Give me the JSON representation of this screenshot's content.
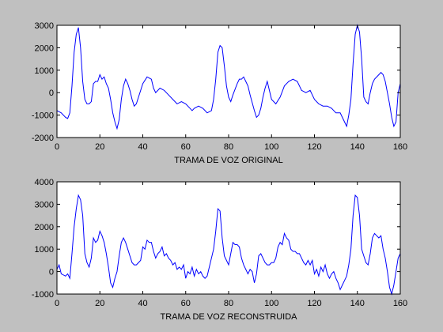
{
  "chart_data": [
    {
      "type": "line",
      "xlabel": "TRAMA DE VOZ ORIGINAL",
      "color": "#0000ff",
      "xlim": [
        0,
        160
      ],
      "xticks": [
        0,
        20,
        40,
        60,
        80,
        100,
        120,
        140,
        160
      ],
      "ylim": [
        -2000,
        3000
      ],
      "yticks": [
        -2000,
        -1000,
        0,
        1000,
        2000,
        3000
      ],
      "x": [
        0,
        2,
        4,
        5,
        6,
        7,
        8,
        9,
        10,
        11,
        12,
        13,
        14,
        15,
        16,
        17,
        18,
        19,
        20,
        21,
        22,
        23,
        24,
        25,
        26,
        27,
        28,
        29,
        30,
        31,
        32,
        33,
        34,
        35,
        36,
        37,
        38,
        39,
        40,
        42,
        44,
        45,
        46,
        47,
        48,
        50,
        52,
        54,
        56,
        58,
        60,
        62,
        63,
        64,
        66,
        68,
        70,
        72,
        73,
        74,
        75,
        76,
        77,
        78,
        79,
        80,
        81,
        82,
        84,
        85,
        86,
        87,
        88,
        89,
        90,
        92,
        93,
        94,
        95,
        96,
        97,
        98,
        99,
        100,
        102,
        104,
        106,
        108,
        110,
        112,
        113,
        114,
        116,
        118,
        119,
        120,
        122,
        124,
        126,
        128,
        129,
        130,
        132,
        134,
        135,
        136,
        137,
        138,
        139,
        140,
        141,
        142,
        143,
        144,
        145,
        146,
        147,
        148,
        150,
        151,
        152,
        153,
        154,
        155,
        156,
        157,
        158,
        159,
        160
      ],
      "values": [
        -800,
        -900,
        -1100,
        -1150,
        -900,
        300,
        1800,
        2600,
        2900,
        2000,
        500,
        -300,
        -500,
        -500,
        -400,
        400,
        500,
        500,
        800,
        600,
        700,
        400,
        200,
        -300,
        -900,
        -1300,
        -1600,
        -1200,
        -300,
        300,
        600,
        400,
        100,
        -300,
        -600,
        -500,
        -200,
        100,
        400,
        700,
        600,
        200,
        0,
        100,
        200,
        100,
        -100,
        -300,
        -500,
        -400,
        -500,
        -700,
        -800,
        -700,
        -600,
        -700,
        -900,
        -800,
        -300,
        600,
        1800,
        2100,
        2000,
        1200,
        300,
        -200,
        -400,
        -100,
        400,
        600,
        600,
        700,
        500,
        300,
        -100,
        -800,
        -1100,
        -1000,
        -700,
        -200,
        200,
        500,
        100,
        -300,
        -500,
        -200,
        300,
        500,
        600,
        500,
        300,
        100,
        0,
        100,
        -100,
        -300,
        -500,
        -600,
        -600,
        -700,
        -800,
        -900,
        -900,
        -1300,
        -1500,
        -1000,
        -300,
        1300,
        2600,
        3000,
        2700,
        1500,
        -200,
        -400,
        -500,
        0,
        400,
        600,
        800,
        900,
        800,
        500,
        0,
        -500,
        -1100,
        -1500,
        -1300,
        0,
        400
      ]
    },
    {
      "type": "line",
      "xlabel": "TRAMA DE VOZ RECONSTRUIDA",
      "color": "#0000ff",
      "xlim": [
        0,
        160
      ],
      "xticks": [
        0,
        20,
        40,
        60,
        80,
        100,
        120,
        140,
        160
      ],
      "ylim": [
        -1000,
        4000
      ],
      "yticks": [
        -1000,
        0,
        1000,
        2000,
        3000,
        4000
      ],
      "x": [
        0,
        1,
        2,
        4,
        5,
        6,
        7,
        8,
        9,
        10,
        11,
        12,
        13,
        14,
        15,
        16,
        17,
        18,
        19,
        20,
        21,
        22,
        23,
        24,
        25,
        26,
        27,
        28,
        29,
        30,
        31,
        32,
        33,
        34,
        35,
        36,
        37,
        38,
        39,
        40,
        41,
        42,
        43,
        44,
        45,
        46,
        47,
        48,
        49,
        50,
        51,
        52,
        53,
        54,
        55,
        56,
        57,
        58,
        59,
        60,
        61,
        62,
        63,
        64,
        65,
        66,
        67,
        68,
        69,
        70,
        71,
        72,
        73,
        74,
        75,
        76,
        77,
        78,
        79,
        80,
        81,
        82,
        83,
        84,
        85,
        86,
        87,
        88,
        89,
        90,
        91,
        92,
        93,
        94,
        95,
        96,
        97,
        98,
        99,
        100,
        101,
        102,
        103,
        104,
        105,
        106,
        107,
        108,
        109,
        110,
        111,
        112,
        113,
        114,
        115,
        116,
        117,
        118,
        119,
        120,
        121,
        122,
        123,
        124,
        125,
        126,
        127,
        128,
        129,
        130,
        131,
        132,
        133,
        134,
        135,
        136,
        137,
        138,
        139,
        140,
        141,
        142,
        143,
        144,
        145,
        146,
        147,
        148,
        149,
        150,
        151,
        152,
        153,
        154,
        155,
        156,
        157,
        158,
        159,
        160
      ],
      "values": [
        100,
        300,
        -100,
        -200,
        -100,
        -300,
        800,
        2000,
        2800,
        3400,
        3200,
        2500,
        800,
        400,
        200,
        600,
        1500,
        1300,
        1400,
        1800,
        1600,
        1300,
        800,
        200,
        -500,
        -700,
        -300,
        0,
        700,
        1300,
        1500,
        1300,
        1000,
        700,
        400,
        300,
        300,
        400,
        500,
        1100,
        1000,
        1400,
        1300,
        1300,
        900,
        600,
        800,
        900,
        1100,
        700,
        800,
        600,
        500,
        300,
        400,
        100,
        200,
        100,
        300,
        -300,
        0,
        -100,
        200,
        -200,
        100,
        -100,
        0,
        -200,
        -300,
        -200,
        200,
        600,
        1000,
        1800,
        2800,
        2700,
        1500,
        700,
        500,
        300,
        800,
        1300,
        1200,
        1200,
        1100,
        600,
        300,
        100,
        -100,
        100,
        0,
        -500,
        -100,
        700,
        800,
        600,
        400,
        300,
        300,
        400,
        400,
        600,
        1100,
        1300,
        1200,
        1700,
        1500,
        1400,
        1000,
        900,
        900,
        800,
        800,
        600,
        400,
        300,
        500,
        300,
        500,
        -100,
        100,
        -200,
        200,
        0,
        300,
        -100,
        -300,
        -100,
        0,
        -300,
        -500,
        -800,
        -600,
        -400,
        -200,
        300,
        1000,
        2500,
        3400,
        3300,
        2500,
        1000,
        700,
        400,
        300,
        800,
        1500,
        1700,
        1600,
        1500,
        1600,
        1000,
        600,
        0,
        -700,
        -1000,
        -600,
        0,
        600,
        800
      ]
    }
  ]
}
